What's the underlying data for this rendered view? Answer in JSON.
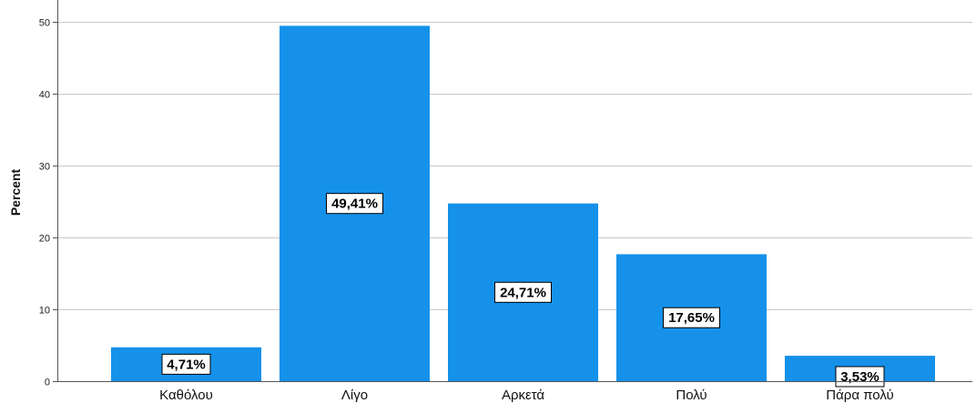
{
  "chart_data": {
    "type": "bar",
    "title": "",
    "xlabel": "",
    "ylabel": "Percent",
    "ylim": [
      0,
      53
    ],
    "yticks": [
      0,
      10,
      20,
      30,
      40,
      50
    ],
    "grid": true,
    "categories": [
      "Καθόλου",
      "Λίγο",
      "Αρκετά",
      "Πολύ",
      "Πάρα πολύ"
    ],
    "values": [
      4.71,
      49.41,
      24.71,
      17.65,
      3.53
    ],
    "data_labels": [
      "4,71%",
      "49,41%",
      "24,71%",
      "17,65%",
      "3,53%"
    ],
    "bar_color": "#1591ea",
    "gridline_color": "#c8c8c8"
  }
}
